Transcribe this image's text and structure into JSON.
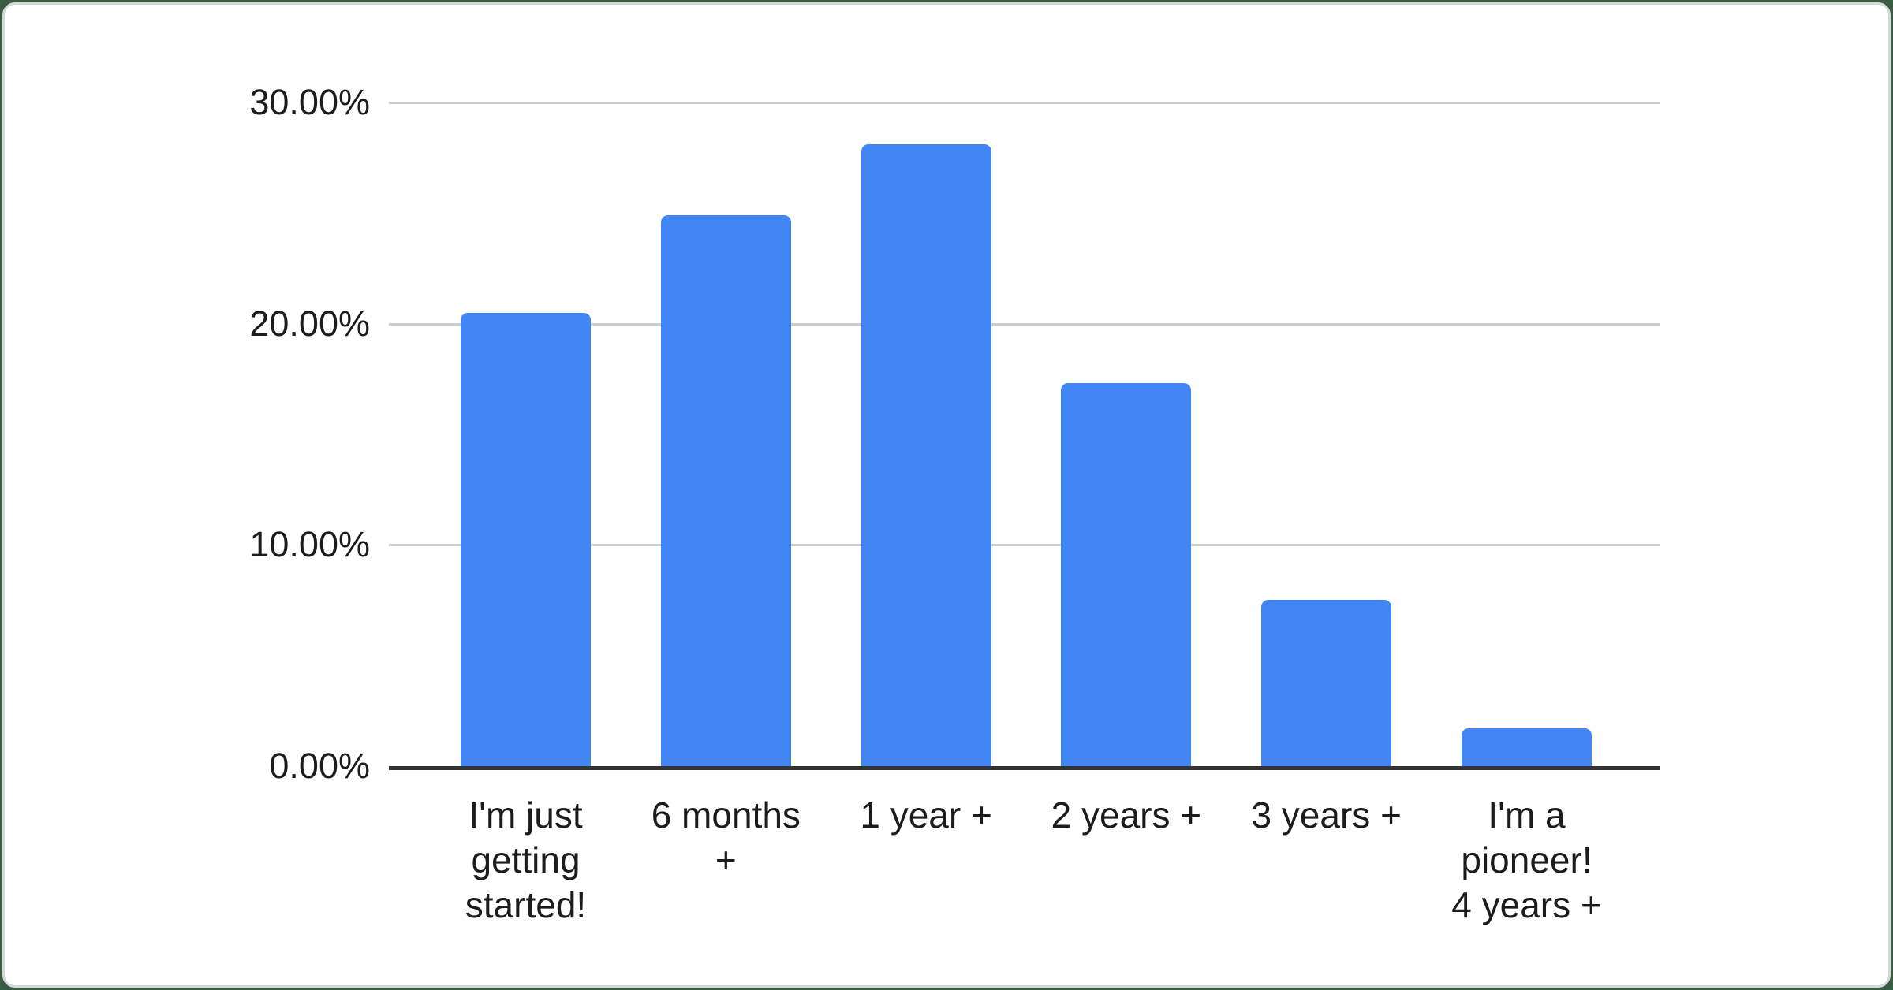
{
  "chart_data": {
    "type": "bar",
    "title": "",
    "xlabel": "",
    "ylabel": "",
    "categories": [
      "I'm just getting started!",
      "6 months +",
      "1 year +",
      "2 years +",
      "3 years +",
      "I'm a pioneer! 4 years +"
    ],
    "category_lines": [
      [
        "I'm just",
        "getting",
        "started!"
      ],
      [
        "6 months",
        "+"
      ],
      [
        "1 year +"
      ],
      [
        "2 years +"
      ],
      [
        "3 years +"
      ],
      [
        "I'm a",
        "pioneer!",
        "4 years +"
      ]
    ],
    "values": [
      20.5,
      24.9,
      28.1,
      17.3,
      7.5,
      1.7
    ],
    "unit": "percent",
    "y_ticks": [
      {
        "value": 30,
        "label": "30.00%"
      },
      {
        "value": 20,
        "label": "20.00%"
      },
      {
        "value": 10,
        "label": "10.00%"
      },
      {
        "value": 0,
        "label": "0.00%"
      }
    ],
    "ylim": [
      0,
      30
    ],
    "grid": true,
    "legend_position": "none",
    "colors": {
      "bar": "#4285f4",
      "gridline": "#cccccc",
      "axis": "#333333",
      "text": "#1c1c1c",
      "card_background": "#ffffff",
      "card_border": "#d5d8db",
      "page_background": "#3a5b44"
    }
  }
}
